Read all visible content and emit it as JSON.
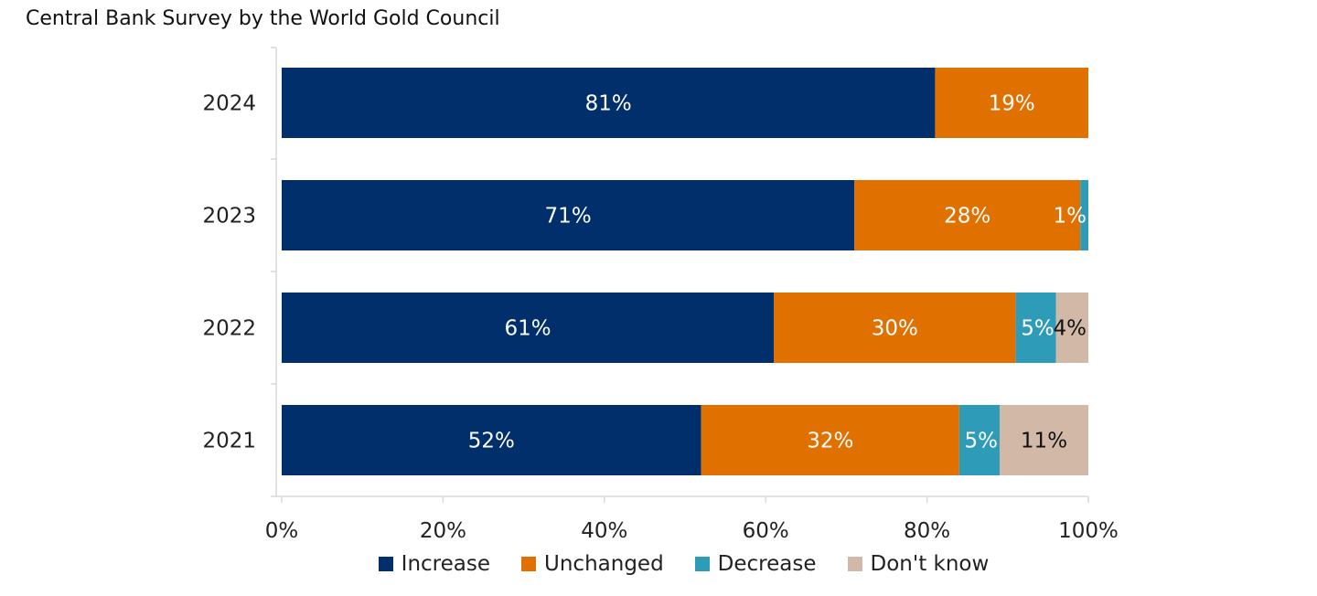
{
  "chart_data": {
    "type": "bar",
    "orientation": "horizontal",
    "stacked": true,
    "title": "Central Bank Survey by the World Gold Council",
    "categories": [
      "2024",
      "2023",
      "2022",
      "2021"
    ],
    "series": [
      {
        "name": "Increase",
        "color": "#002F6C",
        "values": [
          81,
          71,
          61,
          52
        ]
      },
      {
        "name": "Unchanged",
        "color": "#E07000",
        "values": [
          19,
          28,
          30,
          32
        ]
      },
      {
        "name": "Decrease",
        "color": "#2E9CB8",
        "values": [
          0,
          1,
          5,
          5
        ]
      },
      {
        "name": "Don't know",
        "color": "#D2B8A6",
        "values": [
          0,
          0,
          4,
          11
        ]
      }
    ],
    "data_labels": [
      [
        "81%",
        "19%",
        "",
        ""
      ],
      [
        "71%",
        "28%",
        "1%",
        ""
      ],
      [
        "61%",
        "30%",
        "5%",
        "4%"
      ],
      [
        "52%",
        "32%",
        "5%",
        "11%"
      ]
    ],
    "xlim": [
      0,
      100
    ],
    "xticks": [
      "0%",
      "20%",
      "40%",
      "60%",
      "80%",
      "100%"
    ],
    "grid": false,
    "legend_position": "bottom"
  }
}
